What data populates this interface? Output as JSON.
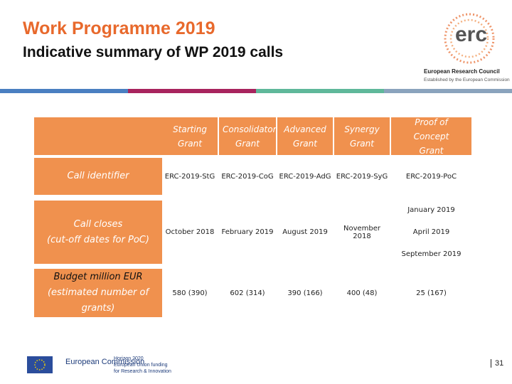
{
  "header": {
    "title": "Work Programme 2019",
    "subtitle": "Indicative summary of WP 2019 calls"
  },
  "logo": {
    "mark": "erc",
    "name": "European Research Council",
    "tagline": "Established by the European Commission"
  },
  "table": {
    "columns": [
      "Starting Grant",
      "Consolidator Grant",
      "Advanced Grant",
      "Synergy Grant",
      "Proof of Concept Grant"
    ],
    "row_headers": [
      {
        "label": "Call identifier"
      },
      {
        "label": "Call closes",
        "note": "(cut-off dates for PoC)"
      },
      {
        "label": "Budget million EUR",
        "note": "(estimated number of grants)"
      }
    ],
    "rows": [
      [
        "ERC-2019-StG",
        "ERC-2019-CoG",
        "ERC-2019-AdG",
        "ERC-2019-SyG",
        "ERC-2019-PoC"
      ],
      [
        "October 2018",
        "February 2019",
        "August 2019",
        "November 2018",
        [
          "January 2019",
          "April 2019",
          "September 2019"
        ]
      ],
      [
        "580 (390)",
        "602 (314)",
        "390 (166)",
        "400 (48)",
        "25 (167)"
      ]
    ]
  },
  "footer": {
    "commission": "European Commission",
    "programme": "Horizon 2020",
    "funding_1": "European Union funding",
    "funding_2": "for Research & Innovation",
    "page": "31"
  }
}
